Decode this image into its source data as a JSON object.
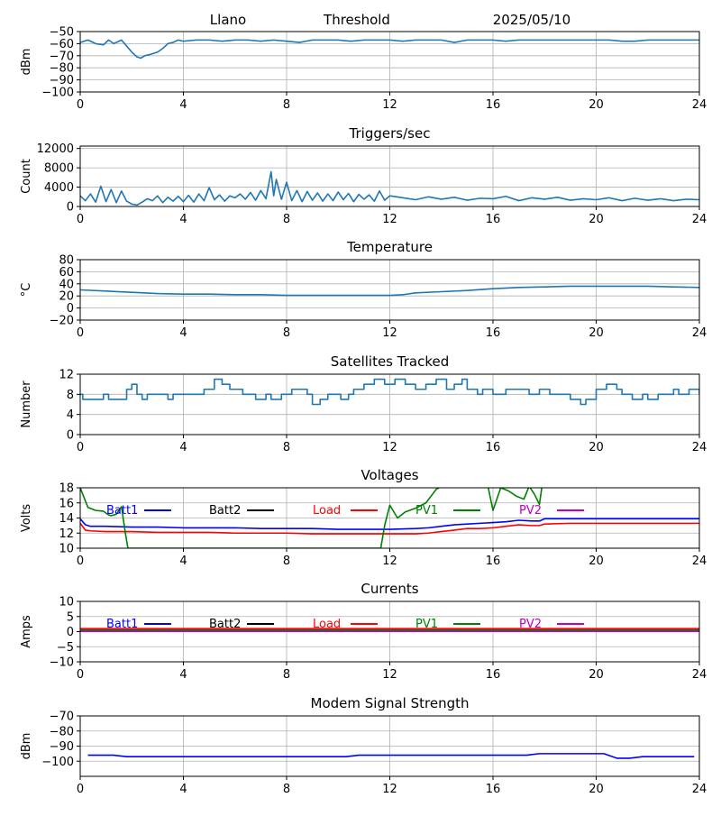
{
  "header": {
    "site": "Llano",
    "mode": "Threshold",
    "date": "2025/05/10"
  },
  "chart_data": [
    {
      "id": "rssi",
      "type": "line",
      "title": "",
      "ylabel": "dBm",
      "xlim": [
        0,
        24
      ],
      "ylim": [
        -100,
        -50
      ],
      "yticks": [
        -100,
        -90,
        -80,
        -70,
        -60,
        -50
      ],
      "xticks": [
        0,
        4,
        8,
        12,
        16,
        20,
        24
      ],
      "grid": true,
      "series": [
        {
          "color": "#1f77b4",
          "x": [
            0,
            0.3,
            0.6,
            0.9,
            1.1,
            1.3,
            1.6,
            1.8,
            2.0,
            2.2,
            2.35,
            2.5,
            2.7,
            3.0,
            3.2,
            3.4,
            3.6,
            3.8,
            4.0,
            4.5,
            5.0,
            5.5,
            6.0,
            6.5,
            7.0,
            7.5,
            8.0,
            8.5,
            9.0,
            9.5,
            10.0,
            10.5,
            11.0,
            11.5,
            12.0,
            12.5,
            13.0,
            13.5,
            14.0,
            14.5,
            15.0,
            15.5,
            16.0,
            16.5,
            17.0,
            17.5,
            18.0,
            18.5,
            19.0,
            19.5,
            20.0,
            20.5,
            21.0,
            21.5,
            22.0,
            22.5,
            23.0,
            23.5,
            24.0
          ],
          "y": [
            -59,
            -57,
            -60,
            -61,
            -57,
            -60,
            -57,
            -62,
            -67,
            -71,
            -72,
            -70,
            -69,
            -67,
            -64,
            -60,
            -59,
            -57,
            -58,
            -57,
            -57,
            -58,
            -57,
            -57,
            -58,
            -57,
            -58,
            -59,
            -57,
            -57,
            -57,
            -58,
            -57,
            -57,
            -57,
            -58,
            -57,
            -57,
            -57,
            -59,
            -57,
            -57,
            -57,
            -58,
            -57,
            -57,
            -57,
            -57,
            -57,
            -57,
            -57,
            -57,
            -58,
            -58,
            -57,
            -57,
            -57,
            -57,
            -57
          ]
        }
      ]
    },
    {
      "id": "triggers",
      "type": "line",
      "title": "Triggers/sec",
      "ylabel": "Count",
      "xlim": [
        0,
        24
      ],
      "ylim": [
        0,
        12500
      ],
      "yticks": [
        0,
        4000,
        8000,
        12000
      ],
      "xticks": [
        0,
        4,
        8,
        12,
        16,
        20,
        24
      ],
      "grid": true,
      "series": [
        {
          "color": "#1f77b4",
          "x": [
            0,
            0.2,
            0.4,
            0.6,
            0.8,
            1.0,
            1.2,
            1.4,
            1.6,
            1.8,
            2.0,
            2.2,
            2.4,
            2.6,
            2.8,
            3.0,
            3.2,
            3.4,
            3.6,
            3.8,
            4.0,
            4.2,
            4.4,
            4.6,
            4.8,
            5.0,
            5.2,
            5.4,
            5.6,
            5.8,
            6.0,
            6.2,
            6.4,
            6.6,
            6.8,
            7.0,
            7.2,
            7.4,
            7.5,
            7.6,
            7.8,
            8.0,
            8.2,
            8.4,
            8.6,
            8.8,
            9.0,
            9.2,
            9.4,
            9.6,
            9.8,
            10.0,
            10.2,
            10.4,
            10.6,
            10.8,
            11.0,
            11.2,
            11.4,
            11.6,
            11.8,
            12.0,
            12.5,
            13.0,
            13.5,
            14.0,
            14.5,
            15.0,
            15.5,
            16.0,
            16.5,
            17.0,
            17.5,
            18.0,
            18.5,
            19.0,
            19.5,
            20.0,
            20.5,
            21.0,
            21.5,
            22.0,
            22.5,
            23.0,
            23.5,
            24.0
          ],
          "y": [
            2200,
            1200,
            2600,
            900,
            4200,
            1000,
            3500,
            800,
            3200,
            1100,
            500,
            300,
            900,
            1600,
            1200,
            2200,
            800,
            1900,
            1100,
            2100,
            1000,
            2300,
            900,
            2600,
            1200,
            3900,
            1400,
            2400,
            1100,
            2200,
            1800,
            2600,
            1500,
            2900,
            1300,
            3300,
            1600,
            7200,
            2200,
            5600,
            1500,
            5000,
            1200,
            3300,
            1000,
            3100,
            1300,
            2800,
            1100,
            2600,
            1200,
            3000,
            1400,
            2700,
            1000,
            2500,
            1500,
            2400,
            1100,
            3200,
            1300,
            2200,
            1800,
            1400,
            2000,
            1500,
            1900,
            1300,
            1700,
            1600,
            2100,
            1200,
            1800,
            1500,
            1900,
            1300,
            1600,
            1400,
            1800,
            1200,
            1700,
            1300,
            1600,
            1200,
            1500,
            1400
          ]
        }
      ]
    },
    {
      "id": "temperature",
      "type": "line",
      "title": "Temperature",
      "ylabel": "°C",
      "xlim": [
        0,
        24
      ],
      "ylim": [
        -20,
        80
      ],
      "yticks": [
        -20,
        0,
        20,
        40,
        60,
        80
      ],
      "xticks": [
        0,
        4,
        8,
        12,
        16,
        20,
        24
      ],
      "grid": true,
      "series": [
        {
          "color": "#1f77b4",
          "x": [
            0,
            1,
            2,
            3,
            4,
            5,
            6,
            7,
            8,
            9,
            10,
            11,
            12,
            12.5,
            13,
            14,
            15,
            16,
            17,
            18,
            19,
            20,
            21,
            22,
            23,
            24
          ],
          "y": [
            30,
            28,
            26,
            24,
            23,
            23,
            22,
            22,
            21,
            21,
            21,
            21,
            21,
            22,
            25,
            27,
            29,
            32,
            34,
            35,
            36,
            36,
            36,
            36,
            35,
            34
          ]
        }
      ]
    },
    {
      "id": "satellites",
      "type": "line",
      "title": "Satellites Tracked",
      "ylabel": "Number",
      "xlim": [
        0,
        24
      ],
      "ylim": [
        0,
        12
      ],
      "yticks": [
        0,
        4,
        8,
        12
      ],
      "xticks": [
        0,
        4,
        8,
        12,
        16,
        20,
        24
      ],
      "grid": true,
      "step": true,
      "series": [
        {
          "color": "#1f77b4",
          "x": [
            0,
            0.1,
            0.6,
            0.9,
            1.1,
            1.8,
            2.0,
            2.2,
            2.4,
            2.6,
            2.8,
            3.4,
            3.6,
            3.8,
            4.8,
            5.2,
            5.5,
            5.8,
            6.3,
            6.8,
            7.2,
            7.4,
            7.8,
            8.2,
            8.8,
            9.0,
            9.3,
            9.6,
            10.1,
            10.4,
            10.6,
            11.0,
            11.4,
            11.8,
            12.2,
            12.6,
            13.0,
            13.4,
            13.8,
            14.2,
            14.5,
            14.8,
            15.0,
            15.4,
            15.6,
            16.0,
            16.5,
            17.0,
            17.4,
            17.8,
            18.2,
            18.6,
            19.0,
            19.4,
            19.6,
            20.0,
            20.4,
            20.8,
            21.0,
            21.4,
            21.8,
            22.0,
            22.4,
            22.8,
            23.0,
            23.2,
            23.6,
            24.0
          ],
          "y": [
            8,
            7,
            7,
            8,
            7,
            9,
            10,
            8,
            7,
            8,
            8,
            7,
            8,
            8,
            9,
            11,
            10,
            9,
            8,
            7,
            8,
            7,
            8,
            9,
            8,
            6,
            7,
            8,
            7,
            8,
            9,
            10,
            11,
            10,
            11,
            10,
            9,
            10,
            11,
            9,
            10,
            11,
            9,
            8,
            9,
            8,
            9,
            9,
            8,
            9,
            8,
            8,
            7,
            6,
            7,
            9,
            10,
            9,
            8,
            7,
            8,
            7,
            8,
            8,
            9,
            8,
            9,
            8
          ]
        }
      ]
    },
    {
      "id": "voltages",
      "type": "line",
      "title": "Voltages",
      "ylabel": "Volts",
      "xlim": [
        0,
        24
      ],
      "ylim": [
        10,
        18
      ],
      "yticks": [
        10,
        12,
        14,
        16,
        18
      ],
      "xticks": [
        0,
        4,
        8,
        12,
        16,
        20,
        24
      ],
      "grid": true,
      "legend": [
        {
          "name": "Batt1",
          "color": "#0000ff"
        },
        {
          "name": "Batt2",
          "color": "#000000"
        },
        {
          "name": "Load",
          "color": "#ff0000"
        },
        {
          "name": "PV1",
          "color": "#008000"
        },
        {
          "name": "PV2",
          "color": "#bf00bf"
        }
      ],
      "series": [
        {
          "name": "Batt1",
          "color": "#0000ff",
          "x": [
            0,
            0.2,
            0.4,
            1,
            2,
            3,
            4,
            5,
            6,
            7,
            8,
            9,
            10,
            11,
            12,
            13,
            13.5,
            14,
            14.5,
            15,
            15.5,
            16,
            16.5,
            17,
            17.5,
            17.8,
            18,
            19,
            20,
            21,
            22,
            23,
            24
          ],
          "y": [
            13.9,
            13.1,
            12.9,
            12.9,
            12.8,
            12.8,
            12.7,
            12.7,
            12.7,
            12.6,
            12.6,
            12.6,
            12.5,
            12.5,
            12.5,
            12.6,
            12.7,
            12.9,
            13.1,
            13.2,
            13.3,
            13.4,
            13.5,
            13.7,
            13.6,
            13.6,
            13.9,
            13.9,
            13.9,
            13.9,
            13.9,
            13.9,
            13.9
          ]
        },
        {
          "name": "Load",
          "color": "#ff0000",
          "x": [
            0,
            0.2,
            0.4,
            1,
            2,
            3,
            4,
            5,
            6,
            7,
            8,
            9,
            10,
            11,
            12,
            13,
            13.5,
            14,
            14.5,
            15,
            15.5,
            16,
            16.5,
            17,
            17.5,
            17.8,
            18,
            19,
            20,
            21,
            22,
            23,
            24
          ],
          "y": [
            13.3,
            12.4,
            12.3,
            12.2,
            12.2,
            12.1,
            12.1,
            12.1,
            12.0,
            12.0,
            12.0,
            11.9,
            11.9,
            11.9,
            11.9,
            11.9,
            12.0,
            12.2,
            12.4,
            12.6,
            12.6,
            12.7,
            12.9,
            13.1,
            13.0,
            13.0,
            13.2,
            13.3,
            13.3,
            13.3,
            13.3,
            13.3,
            13.3
          ]
        },
        {
          "name": "PV1",
          "color": "#008000",
          "x": [
            0,
            0.3,
            0.6,
            0.9,
            1.1,
            1.2,
            1.4,
            1.6,
            1.75,
            1.85,
            11.65,
            11.8,
            12.0,
            12.3,
            12.6,
            13.0,
            13.4,
            13.8,
            14.0,
            15.8,
            16.0,
            16.3,
            16.6,
            16.9,
            17.2,
            17.4,
            17.6,
            17.8,
            17.9
          ],
          "y": [
            18.0,
            15.4,
            15.0,
            14.9,
            14.4,
            14.3,
            14.5,
            15.5,
            12.0,
            10.0,
            10.0,
            13.0,
            15.7,
            14.0,
            14.8,
            15.3,
            16.0,
            17.8,
            18.2,
            18.3,
            15.0,
            18.0,
            17.6,
            16.9,
            16.5,
            18.2,
            17.2,
            15.8,
            18.2
          ]
        }
      ]
    },
    {
      "id": "currents",
      "type": "line",
      "title": "Currents",
      "ylabel": "Amps",
      "xlim": [
        0,
        24
      ],
      "ylim": [
        -10,
        10
      ],
      "yticks": [
        -10,
        -5,
        0,
        5,
        10
      ],
      "xticks": [
        0,
        4,
        8,
        12,
        16,
        20,
        24
      ],
      "grid": true,
      "legend": [
        {
          "name": "Batt1",
          "color": "#0000ff"
        },
        {
          "name": "Batt2",
          "color": "#000000"
        },
        {
          "name": "Load",
          "color": "#ff0000"
        },
        {
          "name": "PV1",
          "color": "#008000"
        },
        {
          "name": "PV2",
          "color": "#bf00bf"
        }
      ],
      "series": [
        {
          "name": "Load",
          "color": "#ff0000",
          "x": [
            0,
            24
          ],
          "y": [
            1.0,
            1.0
          ]
        },
        {
          "name": "PV1",
          "color": "#008000",
          "x": [
            0,
            24
          ],
          "y": [
            0.5,
            0.5
          ]
        },
        {
          "name": "PV2",
          "color": "#bf00bf",
          "x": [
            0,
            24
          ],
          "y": [
            0.1,
            0.1
          ]
        }
      ]
    },
    {
      "id": "modem",
      "type": "line",
      "title": "Modem Signal Strength",
      "ylabel": "dBm",
      "xlim": [
        0,
        24
      ],
      "ylim": [
        -110,
        -70
      ],
      "yticks": [
        -100,
        -90,
        -80,
        -70
      ],
      "xticks": [
        0,
        4,
        8,
        12,
        16,
        20,
        24
      ],
      "grid": true,
      "series": [
        {
          "color": "#0000ff",
          "x": [
            0.3,
            1.3,
            1.8,
            2.3,
            10.3,
            10.8,
            11.3,
            17.3,
            17.8,
            18.3,
            20.3,
            20.8,
            21.3,
            21.8,
            23.8
          ],
          "y": [
            -96,
            -96,
            -97,
            -97,
            -97,
            -96,
            -96,
            -96,
            -95,
            -95,
            -95,
            -98,
            -98,
            -97,
            -97
          ]
        }
      ]
    }
  ]
}
